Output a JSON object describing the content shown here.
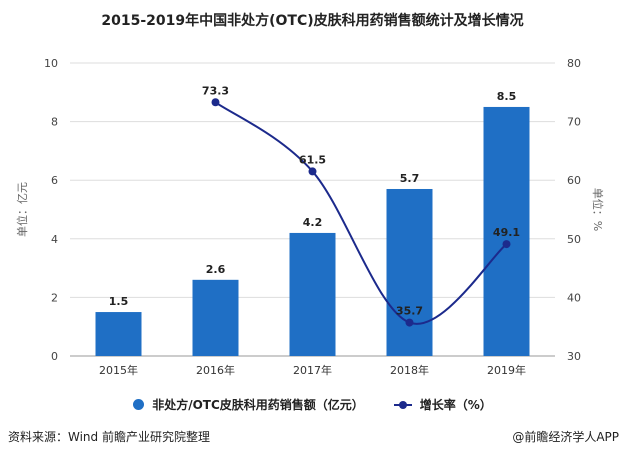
{
  "title": "2015-2019年中国非处方(OTC)皮肤科用药销售额统计及增长情况",
  "chart_data": {
    "type": "bar+line",
    "categories": [
      "2015年",
      "2016年",
      "2017年",
      "2018年",
      "2019年"
    ],
    "series": [
      {
        "name": "非处方/OTC皮肤科用药销售额（亿元）",
        "type": "bar",
        "axis": "left",
        "values": [
          1.5,
          2.6,
          4.2,
          5.7,
          8.5
        ],
        "color": "#1f6fc5"
      },
      {
        "name": "增长率（%）",
        "type": "line",
        "axis": "right",
        "values": [
          null,
          73.3,
          61.5,
          35.7,
          49.1
        ],
        "color": "#1c2a8c"
      }
    ],
    "ylabel": "单位：亿元",
    "y2label": "单位：%",
    "ylim": [
      0,
      10
    ],
    "yticks": [
      0,
      2,
      4,
      6,
      8,
      10
    ],
    "y2lim": [
      30,
      80
    ],
    "y2ticks": [
      30,
      40,
      50,
      60,
      70,
      80
    ],
    "grid": true,
    "legend": "bottom"
  },
  "footer": {
    "source": "资料来源：Wind 前瞻产业研究院整理",
    "brand": "@前瞻经济学人APP"
  }
}
